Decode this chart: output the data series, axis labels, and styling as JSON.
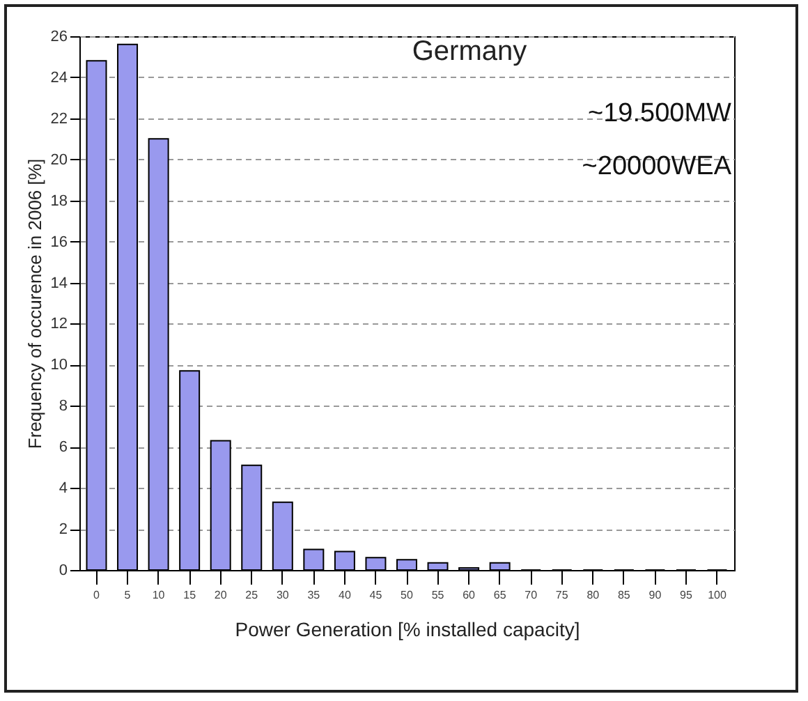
{
  "chart_data": {
    "type": "bar",
    "title": "Germany",
    "xlabel": "Power Generation [% installed capacity]",
    "ylabel": "Frequency of occurence in 2006 [%]",
    "annotations": [
      "~19.500MW",
      "~20000WEA"
    ],
    "categories": [
      "0",
      "5",
      "10",
      "15",
      "20",
      "25",
      "30",
      "35",
      "40",
      "45",
      "50",
      "55",
      "60",
      "65",
      "70",
      "75",
      "80",
      "85",
      "90",
      "95",
      "100"
    ],
    "values": [
      24.8,
      25.6,
      21.0,
      9.7,
      6.3,
      5.1,
      3.3,
      1.0,
      0.9,
      0.6,
      0.5,
      0.35,
      0.1,
      0.35,
      0,
      0,
      0,
      0,
      0,
      0,
      0
    ],
    "color": "#9999ee",
    "ylim": [
      0,
      26
    ],
    "yticks": [
      0,
      2,
      4,
      6,
      8,
      10,
      12,
      14,
      16,
      18,
      20,
      22,
      24,
      26
    ],
    "grid": "y"
  }
}
